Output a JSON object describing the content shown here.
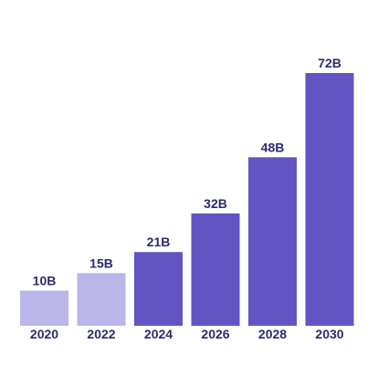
{
  "chart_data": {
    "type": "bar",
    "categories": [
      "2020",
      "2022",
      "2024",
      "2026",
      "2028",
      "2030"
    ],
    "values": [
      10,
      15,
      21,
      32,
      48,
      72
    ],
    "value_labels": [
      "10B",
      "15B",
      "21B",
      "32B",
      "48B",
      "72B"
    ],
    "title": "",
    "xlabel": "",
    "ylabel": "",
    "ylim": [
      0,
      72
    ],
    "grid": false,
    "legend": "none",
    "colors": {
      "historical": "#bab6ea",
      "projected": "#6254c3",
      "label_text": "#2d2a6b"
    },
    "bar_color_group": [
      "historical",
      "historical",
      "projected",
      "projected",
      "projected",
      "projected"
    ]
  }
}
